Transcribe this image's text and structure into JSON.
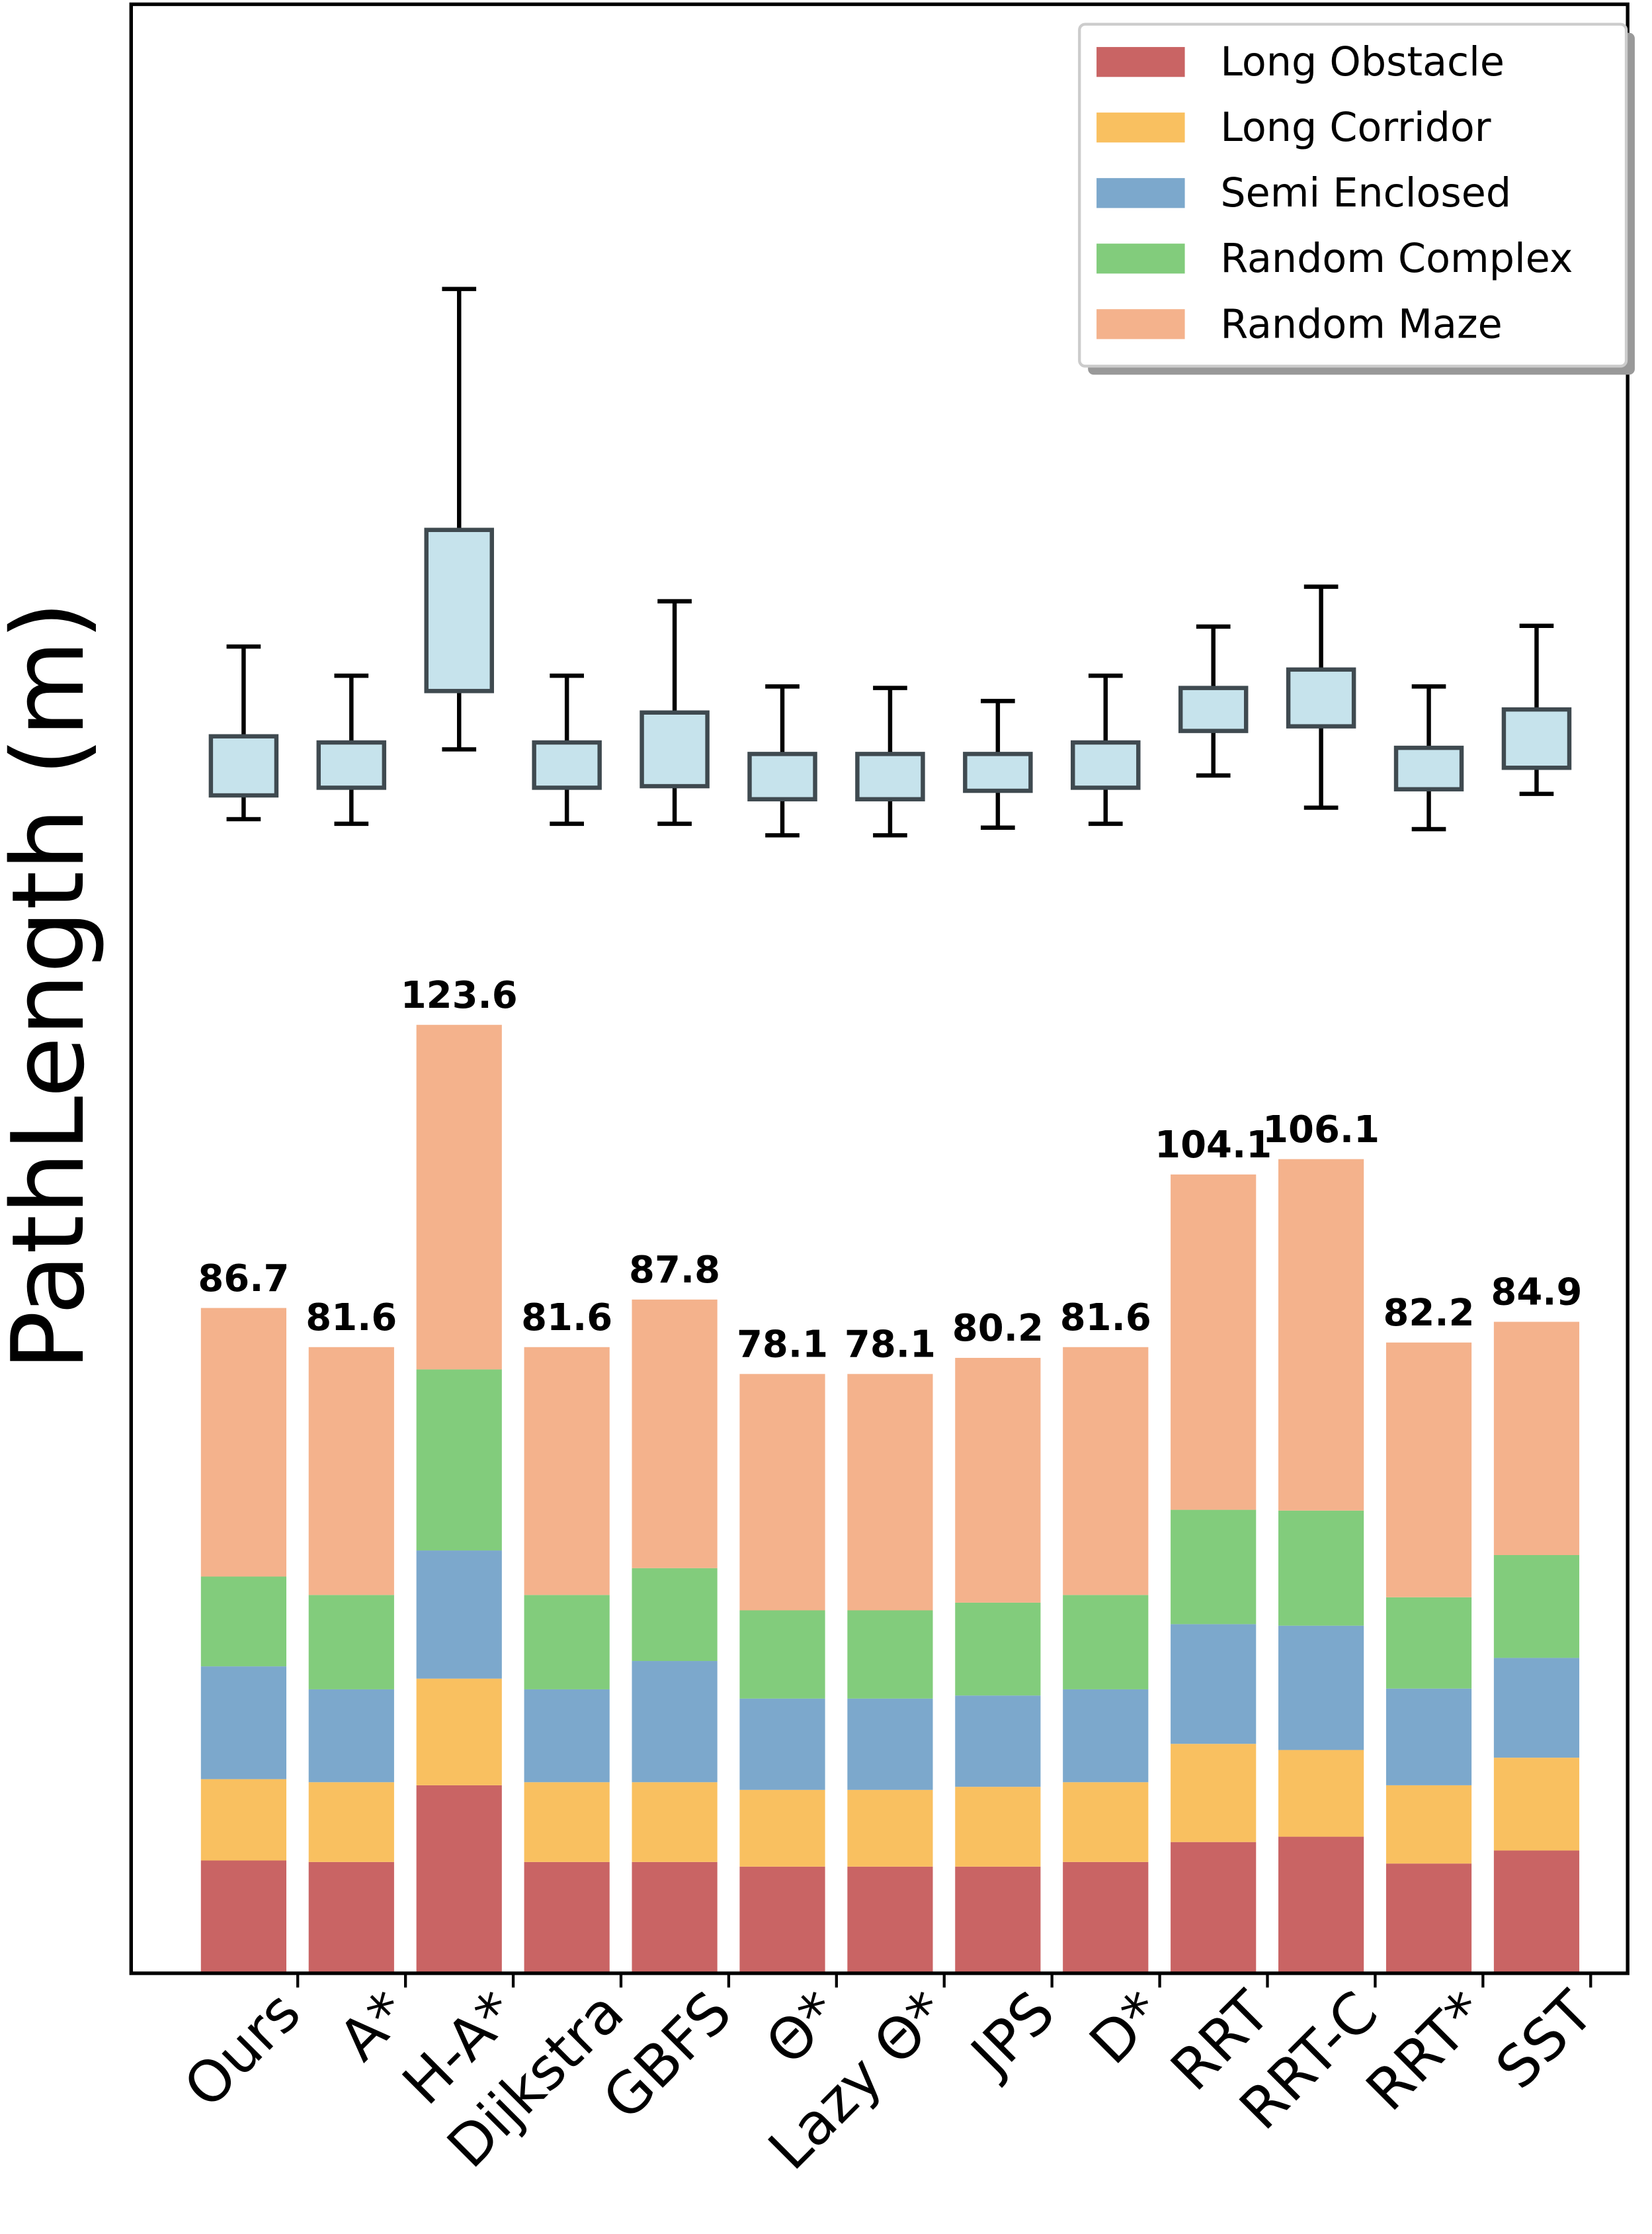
{
  "chart_data": {
    "type": "bar",
    "stacked": true,
    "ylabel": "PathLength (m)",
    "categories": [
      "Ours",
      "A*",
      "H-A*",
      "Dijkstra",
      "GBFS",
      "Θ*",
      "Lazy Θ*",
      "JPS",
      "D*",
      "RRT",
      "RRT-C",
      "RRT*",
      "SST"
    ],
    "series": [
      {
        "name": "Long Obstacle",
        "color": "#c96464",
        "values": [
          14.7,
          14.5,
          24.5,
          14.5,
          14.5,
          13.9,
          13.9,
          13.9,
          14.5,
          17.1,
          17.8,
          14.3,
          16.0
        ]
      },
      {
        "name": "Long Corridor",
        "color": "#f9c060",
        "values": [
          10.6,
          10.4,
          13.9,
          10.4,
          10.4,
          10.0,
          10.0,
          10.4,
          10.4,
          12.8,
          11.3,
          10.2,
          12.1
        ]
      },
      {
        "name": "Semi Enclosed",
        "color": "#7ca8cc",
        "values": [
          14.7,
          12.1,
          16.7,
          12.1,
          15.8,
          11.9,
          11.9,
          11.9,
          12.1,
          15.6,
          16.2,
          12.6,
          13.0
        ]
      },
      {
        "name": "Random Complex",
        "color": "#82cc7c",
        "values": [
          11.7,
          12.3,
          23.6,
          12.3,
          12.1,
          11.5,
          11.5,
          12.1,
          12.3,
          14.9,
          15.0,
          11.9,
          13.4
        ]
      },
      {
        "name": "Random Maze",
        "color": "#f4b28c",
        "values": [
          35.0,
          32.3,
          44.9,
          32.3,
          35.0,
          30.8,
          30.8,
          31.9,
          32.3,
          43.7,
          45.8,
          33.2,
          30.4
        ]
      }
    ],
    "totals": [
      86.7,
      81.6,
      123.6,
      81.6,
      87.8,
      78.1,
      78.1,
      80.2,
      81.6,
      104.1,
      106.1,
      82.2,
      84.9
    ],
    "boxes": {
      "color": "#c6e3ec",
      "whislo": [
        150.4,
        149.8,
        159.5,
        149.8,
        149.8,
        148.3,
        148.3,
        149.3,
        149.8,
        156.1,
        151.9,
        149.1,
        153.7
      ],
      "q1": [
        153.5,
        154.5,
        167.1,
        154.5,
        154.7,
        153.0,
        153.0,
        154.1,
        154.5,
        161.9,
        162.5,
        154.3,
        157.1
      ],
      "q3": [
        161.2,
        160.4,
        188.1,
        160.4,
        164.3,
        158.9,
        158.9,
        158.9,
        160.4,
        167.5,
        169.9,
        159.7,
        164.7
      ],
      "whishi": [
        172.9,
        169.1,
        219.5,
        169.1,
        178.8,
        167.7,
        167.5,
        165.8,
        169.1,
        175.5,
        180.7,
        167.7,
        175.6
      ]
    },
    "ylim": [
      0,
      256.6
    ],
    "legend": "upper right"
  }
}
